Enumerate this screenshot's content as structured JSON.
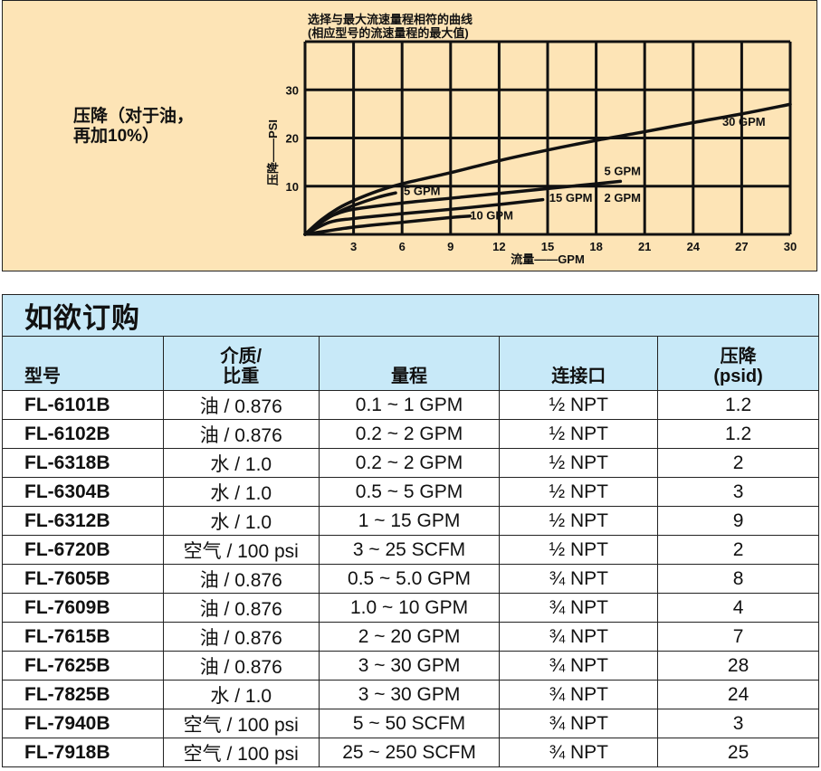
{
  "panel": {
    "side_label_line1": "压降（对于油，",
    "side_label_line2": "再加10%）",
    "background": "#fde4b6"
  },
  "chart_data": {
    "type": "line",
    "title": "选择与最大流速量程相符的曲线",
    "subtitle": "(相应型号的流速量程的最大值)",
    "xlabel": "流量——GPM",
    "ylabel": "压降——PSI",
    "xlim": [
      0,
      30
    ],
    "ylim": [
      0,
      40
    ],
    "xticks": [
      3,
      6,
      9,
      12,
      15,
      18,
      21,
      24,
      27,
      30
    ],
    "yticks": [
      10,
      20,
      30
    ],
    "grid": true,
    "series": [
      {
        "name": "30 GPM",
        "points": [
          [
            0,
            0
          ],
          [
            1,
            3
          ],
          [
            2,
            5.3
          ],
          [
            3,
            7
          ],
          [
            4.5,
            9
          ],
          [
            6,
            10.5
          ],
          [
            9,
            12.8
          ],
          [
            12,
            15.3
          ],
          [
            15,
            17.5
          ],
          [
            18,
            19.5
          ],
          [
            21,
            21.3
          ],
          [
            24,
            23.2
          ],
          [
            27,
            25
          ],
          [
            30,
            27
          ]
        ]
      },
      {
        "name": "5 GPM",
        "points": [
          [
            0,
            0
          ],
          [
            1,
            2.5
          ],
          [
            2,
            4.5
          ],
          [
            3,
            6
          ],
          [
            4.5,
            7.7
          ],
          [
            5.6,
            8.6
          ]
        ]
      },
      {
        "name": "5 GPM",
        "points": [
          [
            0,
            0
          ],
          [
            1,
            2.8
          ],
          [
            2,
            4.3
          ],
          [
            3,
            5.2
          ],
          [
            6,
            6.5
          ],
          [
            9,
            7.5
          ],
          [
            12,
            8.5
          ],
          [
            15,
            9.5
          ],
          [
            18,
            10.5
          ],
          [
            19.5,
            11
          ]
        ]
      },
      {
        "name": "15 GPM, 2 GPM",
        "points": [
          [
            0,
            0
          ],
          [
            1.5,
            2.5
          ],
          [
            3,
            3.3
          ],
          [
            6,
            4.3
          ],
          [
            9,
            5.2
          ],
          [
            12,
            6.2
          ],
          [
            14.7,
            7.2
          ]
        ]
      },
      {
        "name": "10 GPM",
        "points": [
          [
            0,
            0
          ],
          [
            3,
            1.5
          ],
          [
            6,
            2.5
          ],
          [
            9,
            3.5
          ],
          [
            10.2,
            3.8
          ]
        ]
      }
    ],
    "labels": [
      {
        "text": "30 GPM",
        "x": 25.8,
        "y": 22.5
      },
      {
        "text": "5 GPM",
        "x": 6.1,
        "y": 8.2
      },
      {
        "text": "5 GPM",
        "x": 18.5,
        "y": 12.3
      },
      {
        "text": "15 GPM",
        "x": 15.1,
        "y": 6.8
      },
      {
        "text": "2 GPM",
        "x": 18.5,
        "y": 6.8
      },
      {
        "text": "10 GPM",
        "x": 10.2,
        "y": 3.1
      }
    ]
  },
  "order": {
    "title": "如欲订购",
    "header_bg": "#c8e9f8",
    "columns": [
      {
        "l1": "",
        "l2": "型号"
      },
      {
        "l1": "介质/",
        "l2": "比重"
      },
      {
        "l1": "",
        "l2": "量程"
      },
      {
        "l1": "",
        "l2": "连接口"
      },
      {
        "l1": "压降",
        "l2": "(psid)"
      }
    ],
    "rows": [
      [
        "FL-6101B",
        "油 / 0.876",
        "0.1 ~ 1 GPM",
        "½ NPT",
        "1.2"
      ],
      [
        "FL-6102B",
        "油 / 0.876",
        "0.2 ~ 2 GPM",
        "½ NPT",
        "1.2"
      ],
      [
        "FL-6318B",
        "水 / 1.0",
        "0.2 ~ 2 GPM",
        "½ NPT",
        "2"
      ],
      [
        "FL-6304B",
        "水 / 1.0",
        "0.5 ~ 5 GPM",
        "½ NPT",
        "3"
      ],
      [
        "FL-6312B",
        "水 / 1.0",
        "1 ~ 15 GPM",
        "½ NPT",
        "9"
      ],
      [
        "FL-6720B",
        "空气 / 100 psi",
        "3 ~ 25 SCFM",
        "½ NPT",
        "2"
      ],
      [
        "FL-7605B",
        "油 / 0.876",
        "0.5 ~ 5.0 GPM",
        "¾ NPT",
        "8"
      ],
      [
        "FL-7609B",
        "油 / 0.876",
        "1.0 ~ 10 GPM",
        "¾ NPT",
        "4"
      ],
      [
        "FL-7615B",
        "油 / 0.876",
        "2 ~ 20 GPM",
        "¾ NPT",
        "7"
      ],
      [
        "FL-7625B",
        "油 / 0.876",
        "3 ~ 30 GPM",
        "¾ NPT",
        "28"
      ],
      [
        "FL-7825B",
        "水 / 1.0",
        "3 ~ 30 GPM",
        "¾ NPT",
        "24"
      ],
      [
        "FL-7940B",
        "空气 / 100 psi",
        "5 ~ 50 SCFM",
        "¾ NPT",
        "3"
      ],
      [
        "FL-7918B",
        "空气 / 100 psi",
        "25 ~ 250 SCFM",
        "¾ NPT",
        "25"
      ]
    ]
  }
}
